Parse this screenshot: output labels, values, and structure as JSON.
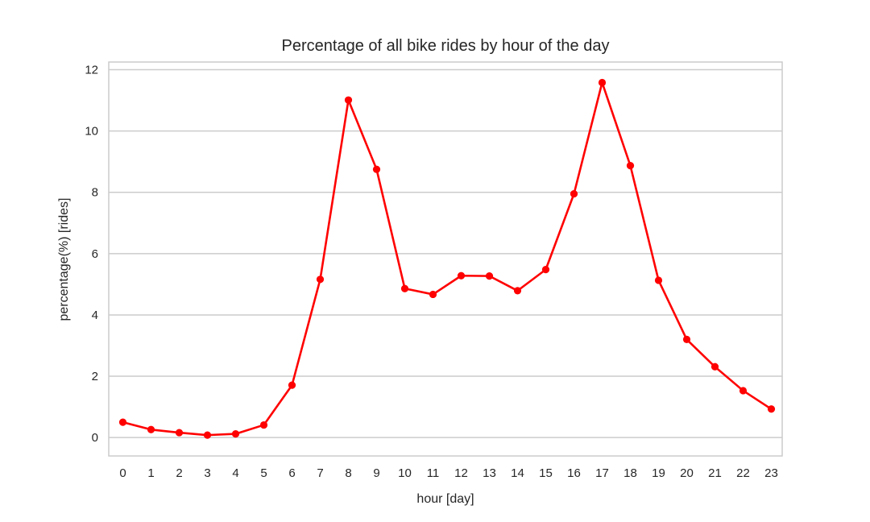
{
  "chart_data": {
    "type": "line",
    "title": "Percentage of all bike rides by hour of the day",
    "xlabel": "hour [day]",
    "ylabel": "percentage(%) [rides]",
    "ylim": [
      -0.6,
      12.25
    ],
    "yticks": [
      0,
      2,
      4,
      6,
      8,
      10,
      12
    ],
    "grid": "horizontal",
    "legend": "none",
    "categories": [
      "0",
      "1",
      "2",
      "3",
      "4",
      "5",
      "6",
      "7",
      "8",
      "9",
      "10",
      "11",
      "12",
      "13",
      "14",
      "15",
      "16",
      "17",
      "18",
      "19",
      "20",
      "21",
      "22",
      "23"
    ],
    "series": [
      {
        "values": [
          0.5,
          0.26,
          0.16,
          0.08,
          0.12,
          0.41,
          1.71,
          5.16,
          11.01,
          8.75,
          4.86,
          4.67,
          5.28,
          5.27,
          4.79,
          5.48,
          7.95,
          11.58,
          8.87,
          5.13,
          3.2,
          2.31,
          1.53,
          0.93
        ],
        "color": "#ff0000"
      }
    ]
  }
}
